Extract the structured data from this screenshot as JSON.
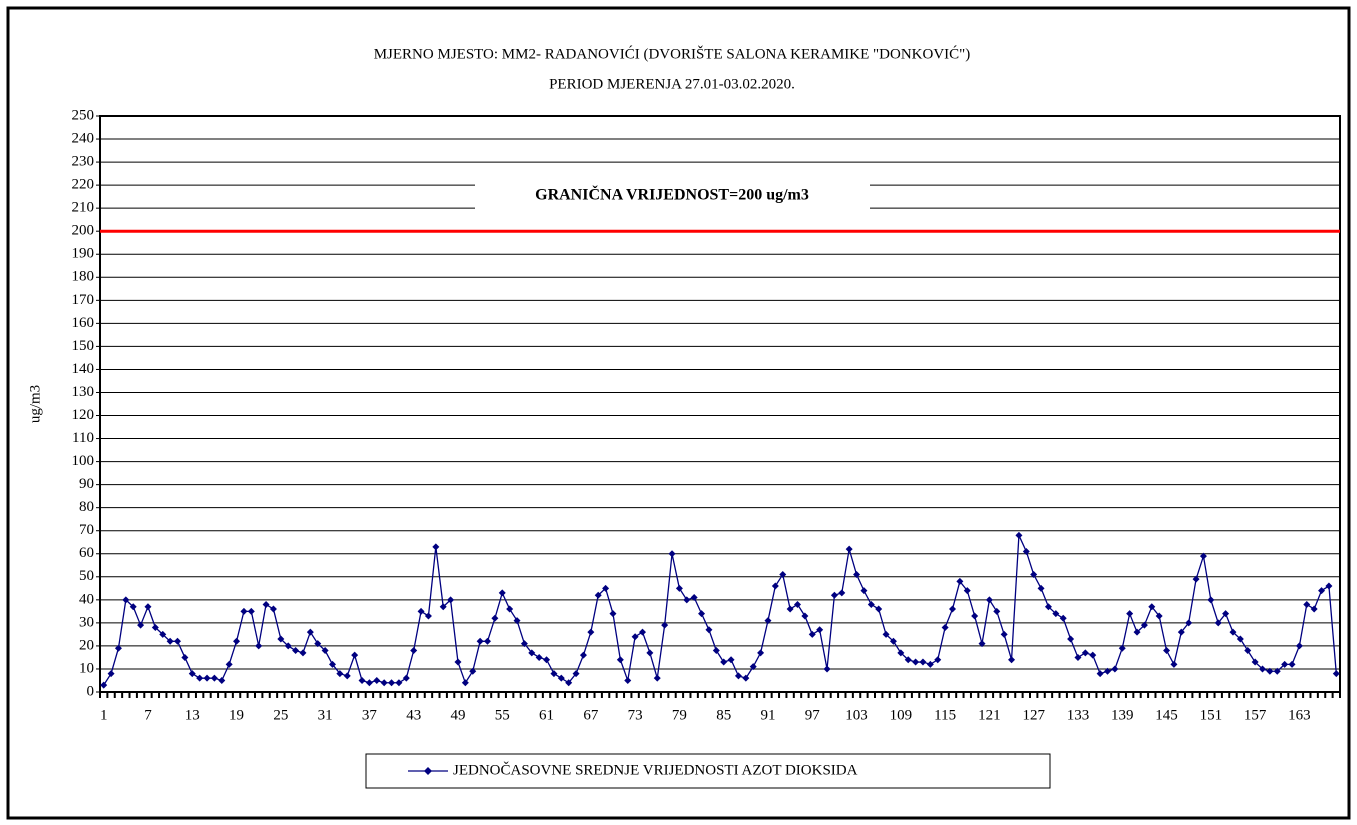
{
  "chart_data": {
    "type": "line",
    "title": "MJERNO MJESTO: MM2- RADANOVIĆI (DVORIŠTE SALONA KERAMIKE \"DONKOVIĆ\")",
    "subtitle": "PERIOD MJERENJA 27.01-03.02.2020.",
    "y_label": "ug/m3",
    "categories": [
      "1",
      null,
      null,
      null,
      null,
      null,
      "7",
      null,
      null,
      null,
      null,
      null,
      "13",
      null,
      null,
      null,
      null,
      null,
      "19",
      null,
      null,
      null,
      null,
      null,
      "25",
      null,
      null,
      null,
      null,
      null,
      "31",
      null,
      null,
      null,
      null,
      null,
      "37",
      null,
      null,
      null,
      null,
      null,
      "43",
      null,
      null,
      null,
      null,
      null,
      "49",
      null,
      null,
      null,
      null,
      null,
      "55",
      null,
      null,
      null,
      null,
      null,
      "61",
      null,
      null,
      null,
      null,
      null,
      "67",
      null,
      null,
      null,
      null,
      null,
      "73",
      null,
      null,
      null,
      null,
      null,
      "79",
      null,
      null,
      null,
      null,
      null,
      "85",
      null,
      null,
      null,
      null,
      null,
      "91",
      null,
      null,
      null,
      null,
      null,
      "97",
      null,
      null,
      null,
      null,
      null,
      "103",
      null,
      null,
      null,
      null,
      null,
      "109",
      null,
      null,
      null,
      null,
      null,
      "115",
      null,
      null,
      null,
      null,
      null,
      "121",
      null,
      null,
      null,
      null,
      null,
      "127",
      null,
      null,
      null,
      null,
      null,
      "133",
      null,
      null,
      null,
      null,
      null,
      "139",
      null,
      null,
      null,
      null,
      null,
      "145",
      null,
      null,
      null,
      null,
      null,
      "151",
      null,
      null,
      null,
      null,
      null,
      "157",
      null,
      null,
      null,
      null,
      null,
      "163",
      null,
      null,
      null,
      null,
      null
    ],
    "series": [
      {
        "name": "JEDNOČASOVNE SREDNJE VRIJEDNOSTI AZOT DIOKSIDA",
        "color": "#000080",
        "values": [
          3,
          8,
          19,
          40,
          37,
          29,
          37,
          28,
          25,
          22,
          22,
          15,
          8,
          6,
          6,
          6,
          5,
          12,
          22,
          35,
          35,
          20,
          38,
          36,
          23,
          20,
          18,
          17,
          26,
          21,
          18,
          12,
          8,
          7,
          16,
          5,
          4,
          5,
          4,
          4,
          4,
          6,
          18,
          35,
          33,
          63,
          37,
          40,
          13,
          4,
          9,
          22,
          22,
          32,
          43,
          36,
          31,
          21,
          17,
          15,
          14,
          8,
          6,
          4,
          8,
          16,
          26,
          42,
          45,
          34,
          14,
          5,
          24,
          26,
          17,
          6,
          29,
          60,
          45,
          40,
          41,
          34,
          27,
          18,
          13,
          14,
          7,
          6,
          11,
          17,
          31,
          46,
          51,
          36,
          38,
          33,
          25,
          27,
          10,
          42,
          43,
          62,
          51,
          44,
          38,
          36,
          25,
          22,
          17,
          14,
          13,
          13,
          12,
          14,
          28,
          36,
          48,
          44,
          33,
          21,
          40,
          35,
          25,
          14,
          68,
          61,
          51,
          45,
          37,
          34,
          32,
          23,
          15,
          17,
          16,
          8,
          9,
          10,
          19,
          34,
          26,
          29,
          37,
          33,
          18,
          12,
          26,
          30,
          49,
          59,
          40,
          30,
          34,
          26,
          23,
          18,
          13,
          10,
          9,
          9,
          12,
          12,
          20,
          38,
          36,
          44,
          46,
          8
        ]
      }
    ],
    "limit": {
      "value": 200,
      "label": "GRANIČNA VRIJEDNOST=200 ug/m3",
      "color": "#ff0000"
    },
    "ylim": [
      0,
      250
    ],
    "yticks": [
      0,
      10,
      20,
      30,
      40,
      50,
      60,
      70,
      80,
      90,
      100,
      110,
      120,
      130,
      140,
      150,
      160,
      170,
      180,
      190,
      200,
      210,
      220,
      230,
      240,
      250
    ],
    "grid": true,
    "legend": "bottom"
  }
}
